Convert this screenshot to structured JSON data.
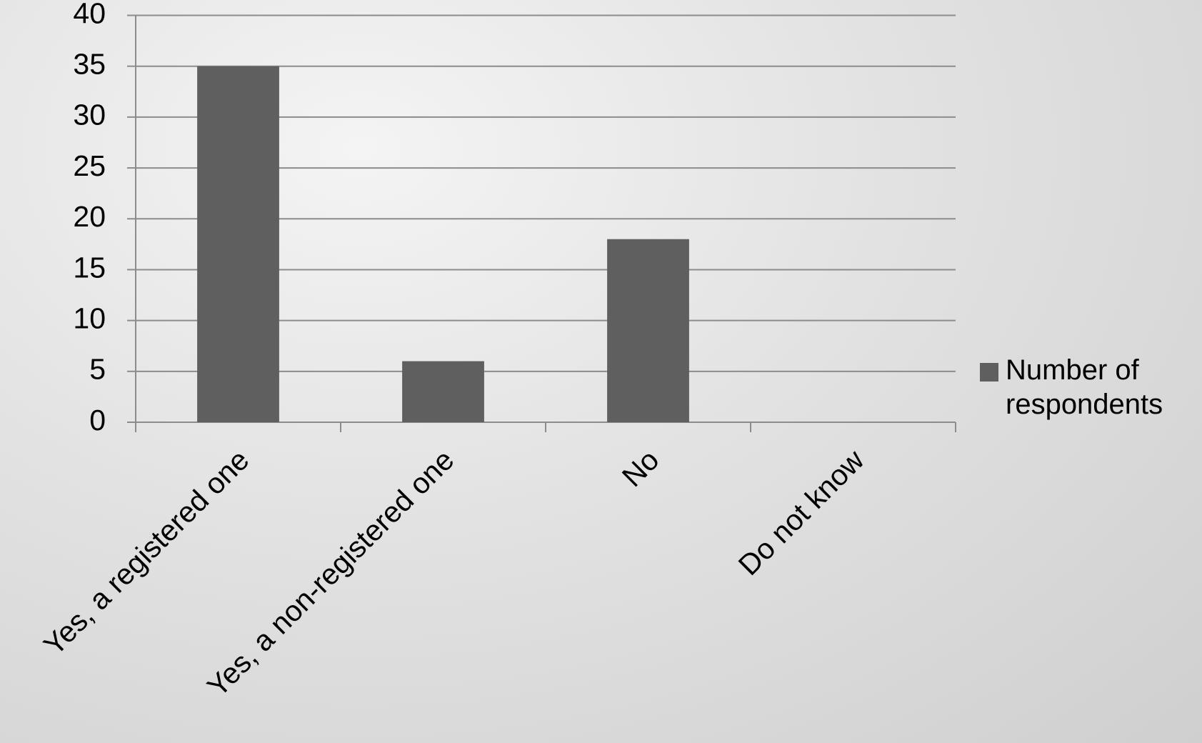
{
  "chart_data": {
    "type": "bar",
    "categories": [
      "Yes, a registered one",
      "Yes, a non-registered one",
      "No",
      "Do not know"
    ],
    "series": [
      {
        "name": "Number of respondents",
        "color": "#5f5f5f",
        "values": [
          35,
          6,
          18,
          0
        ]
      }
    ],
    "ylim": [
      0,
      40
    ],
    "yticks": [
      0,
      5,
      10,
      15,
      20,
      25,
      30,
      35,
      40
    ],
    "grid": true,
    "legend": "right"
  }
}
